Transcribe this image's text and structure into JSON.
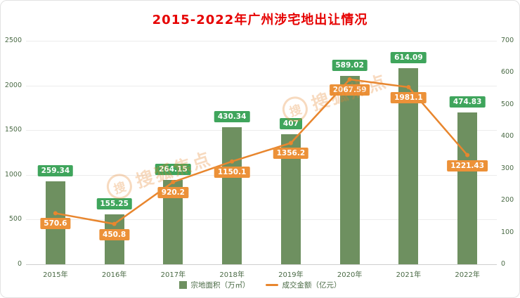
{
  "header": {
    "title": "2015-2022年广州涉宅地出让情况"
  },
  "watermark": {
    "text": "搜狐焦点",
    "circle_char": "搜"
  },
  "colors": {
    "title": "#e60000",
    "bar": "#6e9060",
    "bar_label_bg": "#3fa55c",
    "line": "#e8862e",
    "line_label_bg": "#ec9138",
    "axis_text": "#4a6a45",
    "grid": "#ececec"
  },
  "chart_data": {
    "type": "bar+line",
    "title": "2015-2022年广州涉宅地出让情况",
    "categories": [
      "2015年",
      "2016年",
      "2017年",
      "2018年",
      "2019年",
      "2020年",
      "2021年",
      "2022年"
    ],
    "series": [
      {
        "name": "宗地面积（万㎡）",
        "type": "bar",
        "axis": "right",
        "values": [
          259.34,
          155.25,
          264.15,
          430.34,
          407,
          589.02,
          614.09,
          474.83
        ]
      },
      {
        "name": "成交金额（亿元）",
        "type": "line",
        "axis": "left",
        "values": [
          570.6,
          450.8,
          920.2,
          1150.1,
          1356.2,
          2067.59,
          1981.1,
          1221.43
        ]
      }
    ],
    "axes": {
      "left": {
        "min": 0,
        "max": 2500,
        "ticks": [
          0,
          500,
          1000,
          1500,
          2000,
          2500
        ]
      },
      "right": {
        "min": 0,
        "max": 700,
        "ticks": [
          0,
          100,
          200,
          300,
          400,
          500,
          600,
          700
        ]
      }
    },
    "grid": true,
    "legend_position": "bottom"
  }
}
